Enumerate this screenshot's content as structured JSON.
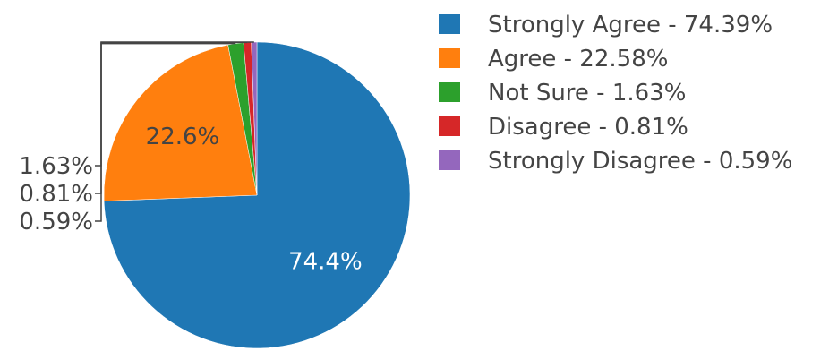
{
  "chart_data": {
    "type": "pie",
    "title": "",
    "legend_position": "right",
    "slices": [
      {
        "name": "Strongly Agree",
        "value": 74.39,
        "label": "74.4%",
        "legend": "Strongly Agree - 74.39%",
        "color": "#1f77b4",
        "label_placement": "inside",
        "label_color": "#ffffff"
      },
      {
        "name": "Agree",
        "value": 22.58,
        "label": "22.6%",
        "legend": "Agree - 22.58%",
        "color": "#ff7f0e",
        "label_placement": "inside",
        "label_color": "#444444"
      },
      {
        "name": "Not Sure",
        "value": 1.63,
        "label": "1.63%",
        "legend": "Not Sure - 1.63%",
        "color": "#2ca02c",
        "label_placement": "outside",
        "label_color": "#444444"
      },
      {
        "name": "Disagree",
        "value": 0.81,
        "label": "0.81%",
        "legend": "Disagree - 0.81%",
        "color": "#d62728",
        "label_placement": "outside",
        "label_color": "#444444"
      },
      {
        "name": "Strongly Disagree",
        "value": 0.59,
        "label": "0.59%",
        "legend": "Strongly Disagree - 0.59%",
        "color": "#9467bd",
        "label_placement": "outside",
        "label_color": "#444444"
      }
    ]
  }
}
